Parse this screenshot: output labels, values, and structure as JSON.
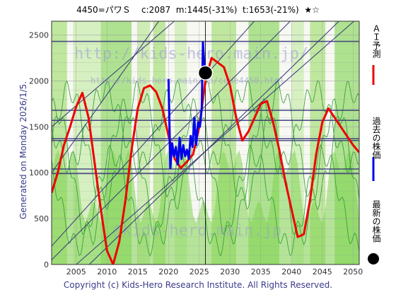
{
  "header": {
    "title": "4450=パワＳ    c:2087  m:1445(-31%)  t:1653(-21%)  ★☆"
  },
  "side_label": "Generated on Monday 2026/1/5.",
  "footer": "Copyright (c) Kids-Hero Research Institute. All Rights Reserved.",
  "watermarks": [
    "http://kids-hero.main.jp/",
    "http://kids-hero.main.jp/code4450.html",
    "@kids-hero.main.jp"
  ],
  "legend": {
    "ai": "ＡＩ予測",
    "past": "過去の株価",
    "latest": "最新の株価"
  },
  "colors": {
    "ai": "#ee0000",
    "past": "#0000ee",
    "latest": "#000000",
    "band": "#66cc33",
    "line": "#333377"
  },
  "chart_data": {
    "type": "line",
    "title": "4450=パワＳ    c:2087  m:1445(-31%)  t:1653(-21%)  ★☆",
    "xlabel": "",
    "ylabel": "",
    "xlim": [
      2001,
      2051
    ],
    "ylim": [
      0,
      2650
    ],
    "x_ticks": [
      "2005",
      "2010",
      "2015",
      "2020",
      "2025",
      "2030",
      "2035",
      "2040",
      "2045",
      "2050"
    ],
    "y_ticks": [
      "0",
      "500",
      "1000",
      "1500",
      "2000",
      "2500"
    ],
    "grid": true,
    "current_price": {
      "x": 2026,
      "y": 2087
    },
    "horizontal_levels": [
      2430,
      1680,
      1570,
      1370,
      1350,
      1040,
      990
    ],
    "series": [
      {
        "name": "ＡＩ予測",
        "x": [
          2001,
          2002,
          2003,
          2004,
          2005,
          2006,
          2007,
          2008,
          2009,
          2010,
          2011,
          2012,
          2013,
          2014,
          2015,
          2016,
          2017,
          2018,
          2019,
          2020,
          2021,
          2022,
          2023,
          2024,
          2025,
          2026,
          2027,
          2028,
          2029,
          2030,
          2031,
          2032,
          2033,
          2034,
          2035,
          2036,
          2037,
          2038,
          2039,
          2040,
          2041,
          2042,
          2043,
          2044,
          2045,
          2046,
          2047,
          2048,
          2049,
          2050,
          2051
        ],
        "values": [
          780,
          1000,
          1300,
          1500,
          1720,
          1870,
          1600,
          1100,
          600,
          150,
          0,
          250,
          700,
          1250,
          1700,
          1920,
          1950,
          1880,
          1700,
          1400,
          1150,
          1050,
          1120,
          1200,
          1500,
          2000,
          2250,
          2200,
          2150,
          1950,
          1600,
          1350,
          1450,
          1600,
          1750,
          1780,
          1550,
          1250,
          900,
          600,
          300,
          330,
          700,
          1200,
          1550,
          1700,
          1600,
          1500,
          1400,
          1300,
          1220
        ]
      },
      {
        "name": "過去の株価",
        "x": [
          2020,
          2020.3,
          2020.6,
          2020.9,
          2021.2,
          2021.5,
          2021.8,
          2022.1,
          2022.4,
          2022.7,
          2023.0,
          2023.3,
          2023.6,
          2023.9,
          2024.2,
          2024.5,
          2024.8,
          2025.1,
          2025.4,
          2025.6,
          2025.8,
          2026.0
        ],
        "values": [
          2020,
          1050,
          1320,
          1180,
          1280,
          1090,
          1380,
          1150,
          1300,
          1180,
          1250,
          1150,
          1400,
          1280,
          1600,
          1300,
          1550,
          1500,
          1700,
          2420,
          2200,
          2087
        ]
      }
    ]
  }
}
